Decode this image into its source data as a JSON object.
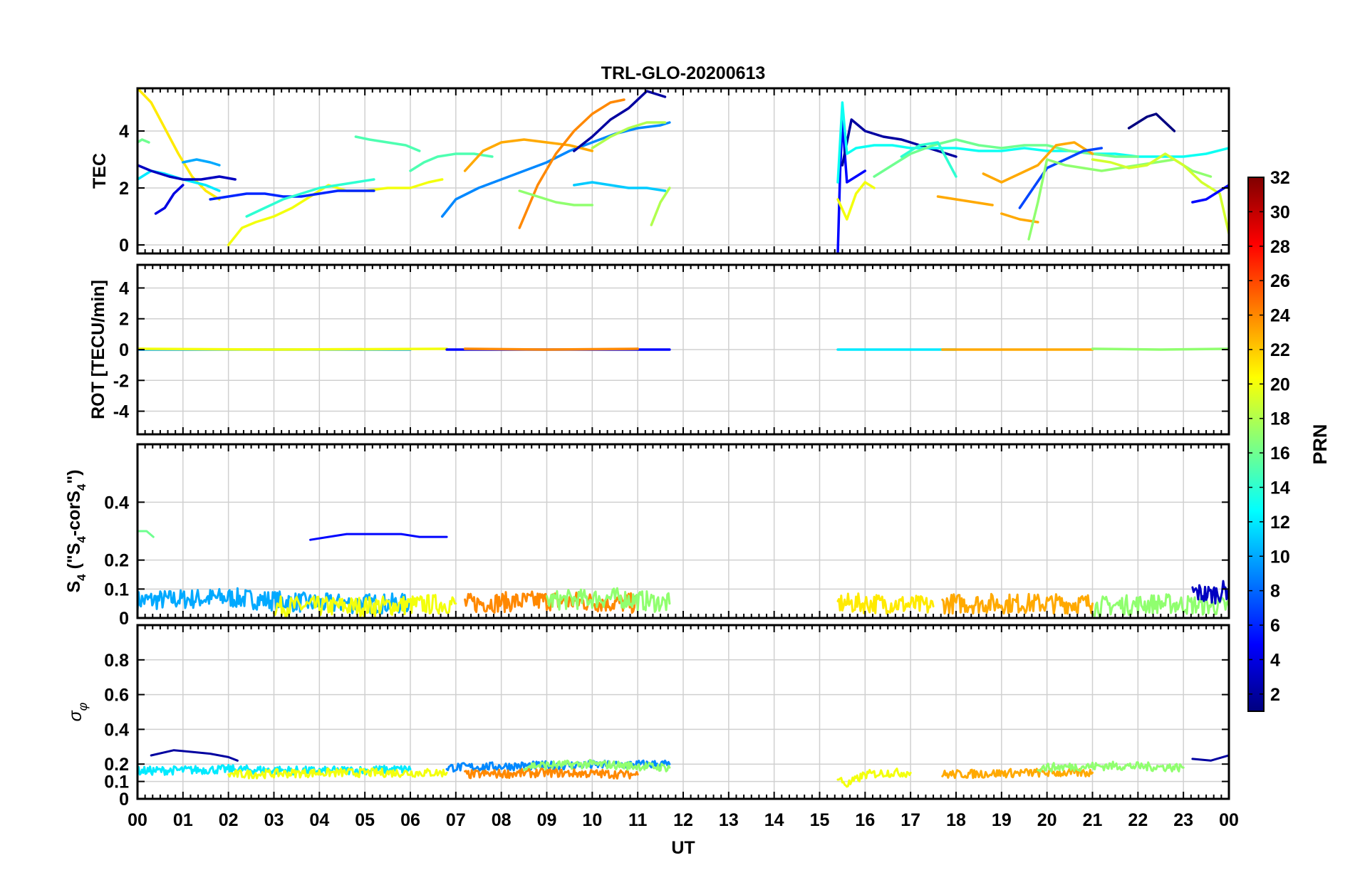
{
  "figure": {
    "title": "TRL-GLO-20200613",
    "xlabel": "UT",
    "x_tick_labels": [
      "00",
      "01",
      "02",
      "03",
      "04",
      "05",
      "06",
      "07",
      "08",
      "09",
      "10",
      "11",
      "12",
      "13",
      "14",
      "15",
      "16",
      "17",
      "18",
      "19",
      "20",
      "21",
      "22",
      "23",
      "00"
    ]
  },
  "colorbar": {
    "label": "PRN",
    "range": [
      1,
      32
    ],
    "tick_labels": [
      "2",
      "4",
      "6",
      "8",
      "10",
      "12",
      "14",
      "16",
      "18",
      "20",
      "22",
      "24",
      "26",
      "28",
      "30",
      "32"
    ],
    "colormap": "jet",
    "stops": [
      "#00008f",
      "#0000ff",
      "#00ffff",
      "#ffff00",
      "#ff0000",
      "#800000"
    ]
  },
  "chart_data": [
    {
      "type": "line",
      "panel": "tec",
      "ylabel": "TEC",
      "ylim": [
        -0.3,
        5.5
      ],
      "y_tick_labels": [
        "0",
        "2",
        "4"
      ],
      "grid": true,
      "series": [
        {
          "prn": 21,
          "x": [
            0.0,
            0.3,
            0.6,
            0.9,
            1.2,
            1.5,
            1.8
          ],
          "y": [
            5.5,
            5.0,
            4.1,
            3.2,
            2.4,
            1.9,
            1.6
          ]
        },
        {
          "prn": 12,
          "x": [
            0.0,
            0.3,
            0.6,
            1.0,
            1.5,
            1.8
          ],
          "y": [
            2.3,
            2.6,
            2.5,
            2.3,
            2.1,
            1.9
          ]
        },
        {
          "prn": 10,
          "x": [
            1.0,
            1.3,
            1.6,
            1.8
          ],
          "y": [
            2.9,
            3.0,
            2.9,
            2.8
          ]
        },
        {
          "prn": 16,
          "x": [
            0.0,
            0.1,
            0.25
          ],
          "y": [
            3.6,
            3.7,
            3.6
          ]
        },
        {
          "prn": 3,
          "x": [
            0.0,
            0.3,
            0.7,
            1.0,
            1.4,
            1.8,
            2.15
          ],
          "y": [
            2.8,
            2.6,
            2.4,
            2.3,
            2.3,
            2.4,
            2.3
          ]
        },
        {
          "prn": 4,
          "x": [
            0.4,
            0.6,
            0.8,
            1.0
          ],
          "y": [
            1.1,
            1.3,
            1.8,
            2.1
          ]
        },
        {
          "prn": 20,
          "x": [
            2.0,
            2.3,
            2.6,
            3.0,
            3.4,
            3.8,
            4.2,
            4.6,
            5.0,
            5.5,
            6.0,
            6.4,
            6.7
          ],
          "y": [
            0.0,
            0.6,
            0.8,
            1.0,
            1.3,
            1.7,
            2.1,
            1.9,
            1.9,
            2.0,
            2.0,
            2.2,
            2.3
          ]
        },
        {
          "prn": 6,
          "x": [
            1.6,
            2.0,
            2.4,
            2.8,
            3.2,
            3.6,
            4.0,
            4.4,
            4.8,
            5.2
          ],
          "y": [
            1.6,
            1.7,
            1.8,
            1.8,
            1.7,
            1.7,
            1.8,
            1.9,
            1.9,
            1.9
          ]
        },
        {
          "prn": 14,
          "x": [
            2.4,
            2.8,
            3.2,
            3.6,
            4.0,
            4.4,
            4.8,
            5.2
          ],
          "y": [
            1.0,
            1.3,
            1.6,
            1.8,
            2.0,
            2.1,
            2.2,
            2.3
          ]
        },
        {
          "prn": 15,
          "x": [
            4.8,
            5.1,
            5.5,
            5.9,
            6.2
          ],
          "y": [
            3.8,
            3.7,
            3.6,
            3.5,
            3.3
          ]
        },
        {
          "prn": 15,
          "x": [
            6.0,
            6.3,
            6.6,
            7.0,
            7.4,
            7.8
          ],
          "y": [
            2.6,
            2.9,
            3.1,
            3.2,
            3.2,
            3.1
          ]
        },
        {
          "prn": 9,
          "x": [
            6.7,
            7.0,
            7.5,
            8.0,
            8.5,
            9.0,
            9.5,
            10.0,
            10.5,
            11.0,
            11.5,
            11.7
          ],
          "y": [
            1.0,
            1.6,
            2.0,
            2.3,
            2.6,
            2.9,
            3.3,
            3.6,
            3.9,
            4.1,
            4.2,
            4.3
          ]
        },
        {
          "prn": 23,
          "x": [
            7.2,
            7.6,
            8.0,
            8.5,
            9.0,
            9.5,
            10.0
          ],
          "y": [
            2.6,
            3.3,
            3.6,
            3.7,
            3.6,
            3.5,
            3.3
          ]
        },
        {
          "prn": 24,
          "x": [
            8.4,
            8.8,
            9.2,
            9.6,
            10.0,
            10.4,
            10.7
          ],
          "y": [
            0.6,
            2.1,
            3.2,
            4.0,
            4.6,
            5.0,
            5.1
          ]
        },
        {
          "prn": 17,
          "x": [
            8.4,
            8.8,
            9.2,
            9.6,
            10.0
          ],
          "y": [
            1.9,
            1.7,
            1.5,
            1.4,
            1.4
          ]
        },
        {
          "prn": 11,
          "x": [
            9.6,
            10.0,
            10.4,
            10.8,
            11.2,
            11.6
          ],
          "y": [
            2.1,
            2.2,
            2.1,
            2.0,
            2.0,
            1.9
          ]
        },
        {
          "prn": 2,
          "x": [
            9.6,
            10.0,
            10.4,
            10.8,
            11.2,
            11.6
          ],
          "y": [
            3.3,
            3.8,
            4.4,
            4.8,
            5.4,
            5.2
          ]
        },
        {
          "prn": 18,
          "x": [
            10.0,
            10.4,
            10.8,
            11.2,
            11.6
          ],
          "y": [
            3.4,
            3.8,
            4.1,
            4.3,
            4.3
          ]
        },
        {
          "prn": 18,
          "x": [
            11.3,
            11.5,
            11.7
          ],
          "y": [
            0.7,
            1.5,
            2.0
          ]
        },
        {
          "prn": 5,
          "x": [
            15.4,
            15.45,
            15.5,
            15.6,
            15.8,
            16.0
          ],
          "y": [
            -0.3,
            2.5,
            4.4,
            2.2,
            2.4,
            2.6
          ]
        },
        {
          "prn": 2,
          "x": [
            15.5,
            15.7,
            16.0,
            16.4,
            16.8,
            17.2,
            17.6,
            18.0
          ],
          "y": [
            2.8,
            4.4,
            4.0,
            3.8,
            3.7,
            3.5,
            3.3,
            3.1
          ]
        },
        {
          "prn": 13,
          "x": [
            15.4,
            15.5,
            15.6,
            15.8,
            16.2,
            16.6,
            17.0,
            17.5,
            18.0,
            18.5,
            19.0,
            19.5,
            20.0,
            20.5,
            21.0,
            21.5,
            22.0,
            22.5,
            23.0,
            23.5,
            24.0
          ],
          "y": [
            2.2,
            5.0,
            3.2,
            3.4,
            3.5,
            3.5,
            3.4,
            3.4,
            3.4,
            3.3,
            3.3,
            3.4,
            3.3,
            3.3,
            3.2,
            3.2,
            3.1,
            3.1,
            3.1,
            3.2,
            3.4
          ]
        },
        {
          "prn": 20,
          "x": [
            15.4,
            15.6,
            15.8,
            16.0,
            16.2
          ],
          "y": [
            1.6,
            0.9,
            1.8,
            2.2,
            2.0
          ]
        },
        {
          "prn": 16,
          "x": [
            16.2,
            16.6,
            17.0,
            17.5,
            18.0,
            18.5,
            19.0,
            19.5,
            20.0,
            20.5,
            21.0,
            21.5,
            22.0
          ],
          "y": [
            2.4,
            2.8,
            3.2,
            3.5,
            3.7,
            3.5,
            3.4,
            3.5,
            3.5,
            3.3,
            3.2,
            3.1,
            3.1
          ]
        },
        {
          "prn": 14,
          "x": [
            16.8,
            17.2,
            17.6,
            18.0
          ],
          "y": [
            3.1,
            3.5,
            3.6,
            2.4
          ]
        },
        {
          "prn": 23,
          "x": [
            17.6,
            18.0,
            18.4,
            18.8
          ],
          "y": [
            1.7,
            1.6,
            1.5,
            1.4
          ]
        },
        {
          "prn": 23,
          "x": [
            18.6,
            19.0,
            19.4,
            19.8,
            20.2,
            20.6,
            21.0
          ],
          "y": [
            2.5,
            2.2,
            2.5,
            2.8,
            3.5,
            3.6,
            3.2
          ]
        },
        {
          "prn": 23,
          "x": [
            19.0,
            19.4,
            19.8
          ],
          "y": [
            1.1,
            0.9,
            0.8
          ]
        },
        {
          "prn": 7,
          "x": [
            19.4,
            19.7,
            20.0,
            20.4,
            20.8,
            21.2
          ],
          "y": [
            1.3,
            2.0,
            2.7,
            3.0,
            3.3,
            3.4
          ]
        },
        {
          "prn": 17,
          "x": [
            19.6,
            19.8,
            20.0,
            20.4,
            20.8,
            21.2,
            21.6,
            22.0,
            22.4,
            22.8,
            23.2,
            23.6
          ],
          "y": [
            0.2,
            1.5,
            3.0,
            2.8,
            2.7,
            2.6,
            2.7,
            2.8,
            2.9,
            3.0,
            2.6,
            2.4
          ]
        },
        {
          "prn": 19,
          "x": [
            21.0,
            21.4,
            21.8,
            22.2,
            22.6,
            23.0,
            23.4,
            23.8,
            24.0
          ],
          "y": [
            3.0,
            2.9,
            2.7,
            2.8,
            3.2,
            2.8,
            2.2,
            1.8,
            0.4
          ]
        },
        {
          "prn": 1,
          "x": [
            21.8,
            22.0,
            22.2,
            22.4,
            22.6,
            22.8
          ],
          "y": [
            4.1,
            4.3,
            4.5,
            4.6,
            4.3,
            4.0
          ]
        },
        {
          "prn": 5,
          "x": [
            23.2,
            23.5,
            23.8,
            24.0
          ],
          "y": [
            1.5,
            1.6,
            1.9,
            2.1
          ]
        }
      ]
    },
    {
      "type": "line",
      "panel": "rot",
      "ylabel": "ROT [TECU/min]",
      "ylim": [
        -5.5,
        5.5
      ],
      "y_tick_labels": [
        "-4",
        "-2",
        "0",
        "2",
        "4"
      ],
      "grid": true,
      "series": [
        {
          "prn": 10,
          "x": [
            0.0,
            3.0,
            6.0
          ],
          "y": [
            0.0,
            0.0,
            0.0
          ]
        },
        {
          "prn": 20,
          "x": [
            0.0,
            3.0,
            6.8
          ],
          "y": [
            0.05,
            0.0,
            0.05
          ]
        },
        {
          "prn": 5,
          "x": [
            6.8,
            9.0,
            11.7
          ],
          "y": [
            0.0,
            0.0,
            0.0
          ]
        },
        {
          "prn": 24,
          "x": [
            7.2,
            9.0,
            11.0
          ],
          "y": [
            0.05,
            0.0,
            0.05
          ]
        },
        {
          "prn": 12,
          "x": [
            15.4,
            17.0,
            18.0
          ],
          "y": [
            0.0,
            0.0,
            0.0
          ]
        },
        {
          "prn": 23,
          "x": [
            17.7,
            19.5,
            21.0
          ],
          "y": [
            0.0,
            0.0,
            0.0
          ]
        },
        {
          "prn": 17,
          "x": [
            21.0,
            22.5,
            24.0
          ],
          "y": [
            0.05,
            0.0,
            0.05
          ]
        }
      ]
    },
    {
      "type": "line",
      "panel": "s4",
      "ylabel": "S4 (\"S4-corS4\")",
      "ylim": [
        0,
        0.6
      ],
      "y_tick_labels": [
        "0",
        "0.1",
        "0.2",
        "0.4"
      ],
      "grid": true,
      "series": [
        {
          "prn": 16,
          "x": [
            0.0,
            0.2,
            0.35
          ],
          "y": [
            0.3,
            0.3,
            0.28
          ]
        },
        {
          "prn": 5,
          "x": [
            3.8,
            4.2,
            4.6,
            5.0,
            5.4,
            5.8,
            6.2,
            6.6,
            6.8
          ],
          "y": [
            0.27,
            0.28,
            0.29,
            0.29,
            0.29,
            0.29,
            0.28,
            0.28,
            0.28
          ]
        },
        {
          "prn": 10,
          "x": [
            0.0,
            2.0,
            4.0,
            6.0
          ],
          "y": [
            0.06,
            0.07,
            0.05,
            0.05
          ]
        },
        {
          "prn": 20,
          "x": [
            3.0,
            5.0,
            7.0
          ],
          "y": [
            0.04,
            0.04,
            0.05
          ]
        },
        {
          "prn": 24,
          "x": [
            7.2,
            9.0,
            11.0
          ],
          "y": [
            0.05,
            0.06,
            0.05
          ]
        },
        {
          "prn": 17,
          "x": [
            9.0,
            10.5,
            11.7
          ],
          "y": [
            0.06,
            0.07,
            0.05
          ]
        },
        {
          "prn": 21,
          "x": [
            15.4,
            16.5,
            17.5
          ],
          "y": [
            0.05,
            0.05,
            0.04
          ]
        },
        {
          "prn": 23,
          "x": [
            17.7,
            19.5,
            21.0
          ],
          "y": [
            0.05,
            0.05,
            0.05
          ]
        },
        {
          "prn": 17,
          "x": [
            21.0,
            22.5,
            24.0
          ],
          "y": [
            0.04,
            0.05,
            0.04
          ]
        },
        {
          "prn": 3,
          "x": [
            23.2,
            23.6,
            24.0
          ],
          "y": [
            0.09,
            0.08,
            0.1
          ]
        }
      ]
    },
    {
      "type": "line",
      "panel": "sigma_phi",
      "ylabel": "σφ",
      "ylim": [
        0,
        1.0
      ],
      "y_tick_labels": [
        "0",
        "0.1",
        "0.2",
        "0.4",
        "0.6",
        "0.8"
      ],
      "grid": true,
      "series": [
        {
          "prn": 2,
          "x": [
            0.3,
            0.8,
            1.2,
            1.6,
            2.0,
            2.2
          ],
          "y": [
            0.25,
            0.28,
            0.27,
            0.26,
            0.24,
            0.22
          ]
        },
        {
          "prn": 12,
          "x": [
            0.0,
            2.0,
            4.0,
            6.0
          ],
          "y": [
            0.16,
            0.17,
            0.16,
            0.17
          ]
        },
        {
          "prn": 20,
          "x": [
            2.0,
            4.0,
            6.8
          ],
          "y": [
            0.14,
            0.15,
            0.15
          ]
        },
        {
          "prn": 9,
          "x": [
            6.8,
            8.5,
            11.7
          ],
          "y": [
            0.18,
            0.19,
            0.2
          ]
        },
        {
          "prn": 24,
          "x": [
            7.2,
            9.0,
            11.0
          ],
          "y": [
            0.14,
            0.15,
            0.14
          ]
        },
        {
          "prn": 17,
          "x": [
            8.5,
            10.0,
            11.7
          ],
          "y": [
            0.19,
            0.2,
            0.18
          ]
        },
        {
          "prn": 20,
          "x": [
            15.4,
            15.6,
            16.0,
            16.5,
            17.0
          ],
          "y": [
            0.12,
            0.08,
            0.14,
            0.15,
            0.15
          ]
        },
        {
          "prn": 23,
          "x": [
            17.7,
            19.5,
            21.0
          ],
          "y": [
            0.14,
            0.15,
            0.15
          ]
        },
        {
          "prn": 17,
          "x": [
            19.8,
            21.5,
            23.0
          ],
          "y": [
            0.18,
            0.19,
            0.18
          ]
        },
        {
          "prn": 2,
          "x": [
            23.2,
            23.6,
            24.0
          ],
          "y": [
            0.23,
            0.22,
            0.25
          ]
        }
      ]
    }
  ]
}
